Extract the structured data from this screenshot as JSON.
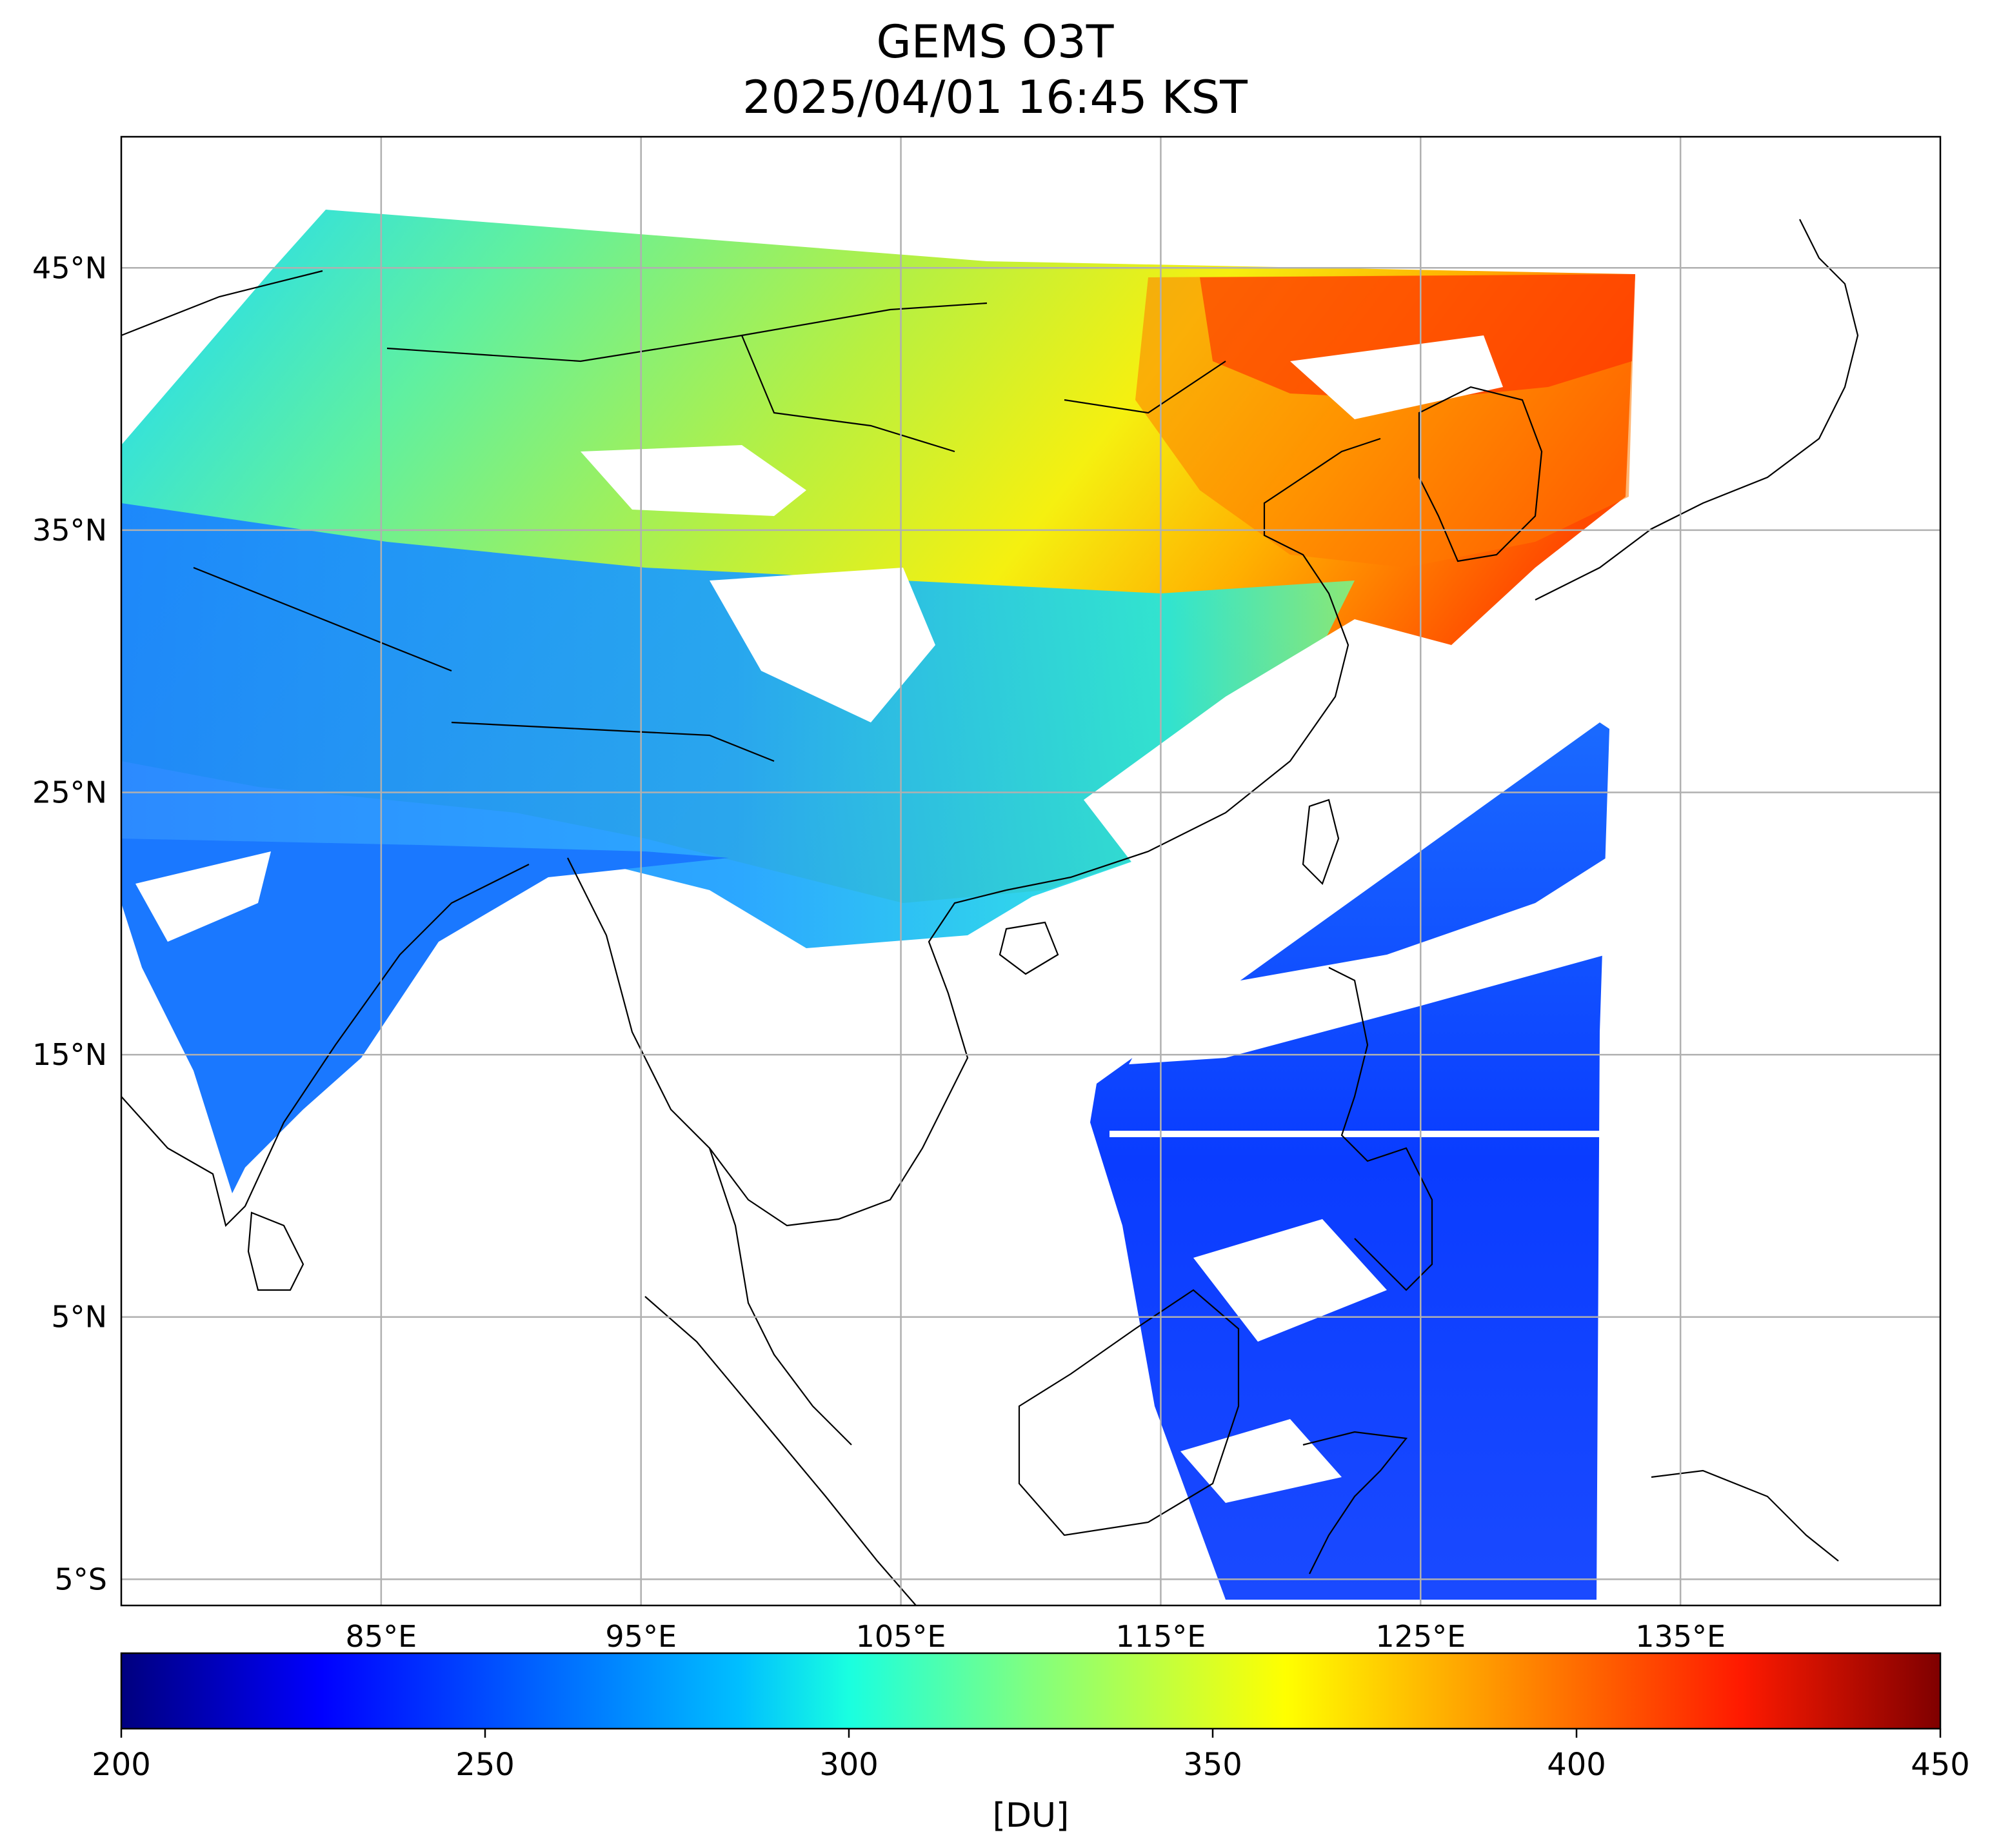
{
  "title": {
    "line1": "GEMS O3T",
    "line2": "2025/04/01 16:45 KST"
  },
  "map": {
    "lon_range": [
      75,
      145
    ],
    "lat_range": [
      -6,
      50
    ],
    "lat_ticks": [
      {
        "value": 45,
        "label": "45°N"
      },
      {
        "value": 35,
        "label": "35°N"
      },
      {
        "value": 25,
        "label": "25°N"
      },
      {
        "value": 15,
        "label": "15°N"
      },
      {
        "value": 5,
        "label": "5°N"
      },
      {
        "value": -5,
        "label": "5°S"
      }
    ],
    "lon_ticks": [
      {
        "value": 85,
        "label": "85°E"
      },
      {
        "value": 95,
        "label": "95°E"
      },
      {
        "value": 105,
        "label": "105°E"
      },
      {
        "value": 115,
        "label": "115°E"
      },
      {
        "value": 125,
        "label": "125°E"
      },
      {
        "value": 135,
        "label": "135°E"
      }
    ],
    "grid": true
  },
  "colorbar": {
    "min": 200,
    "max": 450,
    "ticks": [
      {
        "value": 200,
        "label": "200"
      },
      {
        "value": 250,
        "label": "250"
      },
      {
        "value": 300,
        "label": "300"
      },
      {
        "value": 350,
        "label": "350"
      },
      {
        "value": 400,
        "label": "400"
      },
      {
        "value": 450,
        "label": "450"
      }
    ],
    "unit": "[DU]",
    "colormap": [
      "#00007f",
      "#0000ff",
      "#007fff",
      "#00ffff",
      "#7fff7f",
      "#ffff00",
      "#ff7f00",
      "#ff0000",
      "#7f0000"
    ]
  }
}
